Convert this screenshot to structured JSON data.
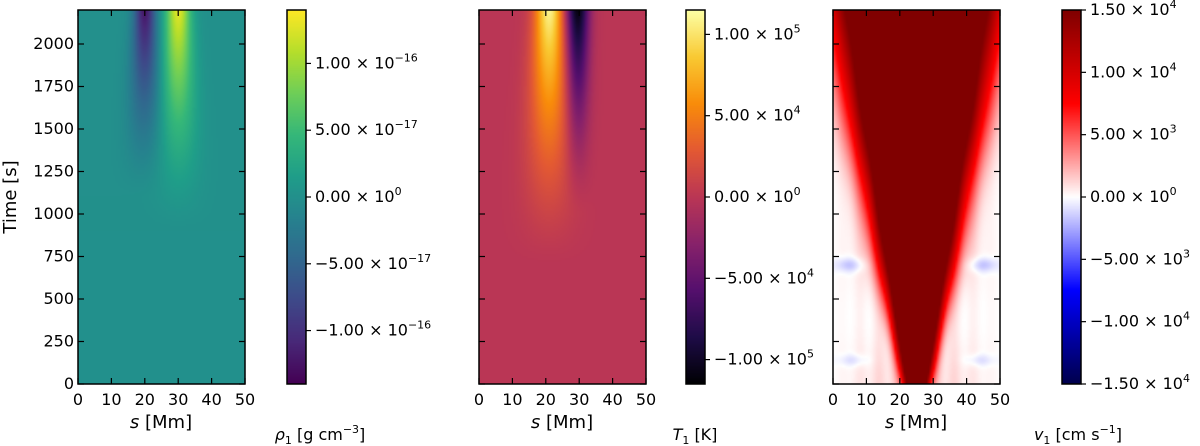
{
  "chart_data": [
    {
      "type": "heatmap",
      "quantity": "density perturbation",
      "x": {
        "label_prefix": "s",
        "label_unit": "[Mm]",
        "ticks": [
          0,
          10,
          20,
          30,
          40,
          50
        ],
        "range": [
          0,
          50
        ]
      },
      "y": {
        "label": "Time [s]",
        "ticks": [
          0,
          250,
          500,
          750,
          1000,
          1250,
          1500,
          1750,
          2000
        ],
        "range": [
          0,
          2200
        ]
      },
      "colormap": "viridis",
      "colorbar": {
        "label_symbol": "ρ",
        "label_sub": "1",
        "label_unit": "[g cm",
        "label_unit_sup": "−3",
        "label_close": "]",
        "range": [
          -1.4e-16,
          1.4e-16
        ],
        "ticks": [
          {
            "value": 1e-16,
            "mant": "1.00 × 10",
            "exp": "−16"
          },
          {
            "value": 5e-17,
            "mant": "5.00 × 10",
            "exp": "−17"
          },
          {
            "value": 0,
            "mant": "0.00 × 10",
            "exp": "0"
          },
          {
            "value": -5e-17,
            "mant": "−5.00 × 10",
            "exp": "−17"
          },
          {
            "value": -1e-16,
            "mant": "−1.00 × 10",
            "exp": "−16"
          }
        ]
      },
      "features": [
        {
          "s": 30,
          "onset_time": 900,
          "peak": 1.3e-16,
          "width_Mm": 2.6
        },
        {
          "s": 20,
          "onset_time": 1100,
          "peak": -1.25e-16,
          "width_Mm": 2.2
        }
      ]
    },
    {
      "type": "heatmap",
      "quantity": "temperature perturbation",
      "x": {
        "label_prefix": "s",
        "label_unit": "[Mm]",
        "ticks": [
          0,
          10,
          20,
          30,
          40,
          50
        ],
        "range": [
          0,
          50
        ]
      },
      "y": {
        "ticks": [
          0,
          250,
          500,
          750,
          1000,
          1250,
          1500,
          1750,
          2000
        ],
        "range": [
          0,
          2200
        ]
      },
      "colormap": "inferno",
      "colorbar": {
        "label_symbol": "T",
        "label_sub": "1",
        "label_unit": "[K]",
        "range": [
          -115000.0,
          115000.0
        ],
        "ticks": [
          {
            "value": 100000,
            "mant": "1.00 × 10",
            "exp": "5"
          },
          {
            "value": 50000,
            "mant": "5.00 × 10",
            "exp": "4"
          },
          {
            "value": 0,
            "mant": "0.00 × 10",
            "exp": "0"
          },
          {
            "value": -50000,
            "mant": "−5.00 × 10",
            "exp": "4"
          },
          {
            "value": -100000,
            "mant": "−1.00 × 10",
            "exp": "5"
          }
        ]
      },
      "features": [
        {
          "s": 21,
          "onset_time": 700,
          "peak": 110000.0,
          "width_Mm": 3.0
        },
        {
          "s": 29.5,
          "onset_time": 1000,
          "peak": -112000.0,
          "width_Mm": 2.4
        }
      ]
    },
    {
      "type": "heatmap",
      "quantity": "velocity perturbation",
      "x": {
        "label_prefix": "s",
        "label_unit": "[Mm]",
        "ticks": [
          0,
          10,
          20,
          30,
          40,
          50
        ],
        "range": [
          0,
          50
        ]
      },
      "y": {
        "ticks": [
          0,
          250,
          500,
          750,
          1000,
          1250,
          1500,
          1750,
          2000
        ],
        "range": [
          0,
          2200
        ]
      },
      "colormap": "seismic",
      "colorbar": {
        "label_symbol": "v",
        "label_sub": "1",
        "label_unit": "[cm s",
        "label_unit_sup": "−1",
        "label_close": "]",
        "range": [
          -15000.0,
          15000.0
        ],
        "ticks": [
          {
            "value": 15000,
            "mant": "1.50 × 10",
            "exp": "4"
          },
          {
            "value": 10000,
            "mant": "1.00 × 10",
            "exp": "4"
          },
          {
            "value": 5000,
            "mant": "5.00 × 10",
            "exp": "3"
          },
          {
            "value": 0,
            "mant": "0.00 × 10",
            "exp": "0"
          },
          {
            "value": -5000,
            "mant": "−5.00 × 10",
            "exp": "3"
          },
          {
            "value": -10000,
            "mant": "−1.00 × 10",
            "exp": "4"
          },
          {
            "value": -15000,
            "mant": "−1.50 × 10",
            "exp": "4"
          }
        ]
      },
      "features": [
        {
          "description_values": "V-shaped saturated flow region centred at s=25, widening from ~5 Mm at t=0 to ~50 Mm at t=2200",
          "s_center": 25,
          "max": 15000
        },
        {
          "s": 25,
          "time": 470,
          "value": 9000
        },
        {
          "s": 5,
          "time": 700,
          "value": -2000
        },
        {
          "s": 45,
          "time": 700,
          "value": -2000
        }
      ]
    }
  ]
}
